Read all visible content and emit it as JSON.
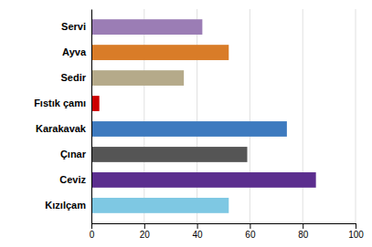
{
  "chart_data": {
    "type": "bar",
    "orientation": "horizontal",
    "categories": [
      "Servi",
      "Ayva",
      "Sedir",
      "Fıstık çamı",
      "Karakavak",
      "Çınar",
      "Ceviz",
      "Kızılçam"
    ],
    "values": [
      42,
      52,
      35,
      3,
      74,
      59,
      85,
      52
    ],
    "colors": [
      "#9b7db5",
      "#d97c28",
      "#b5aa8a",
      "#cc0000",
      "#3d7abf",
      "#555555",
      "#5b2d8e",
      "#7ec8e3"
    ],
    "xlim": [
      0,
      100
    ],
    "xticks": [
      0,
      20,
      40,
      60,
      80,
      100
    ],
    "grid": true
  }
}
